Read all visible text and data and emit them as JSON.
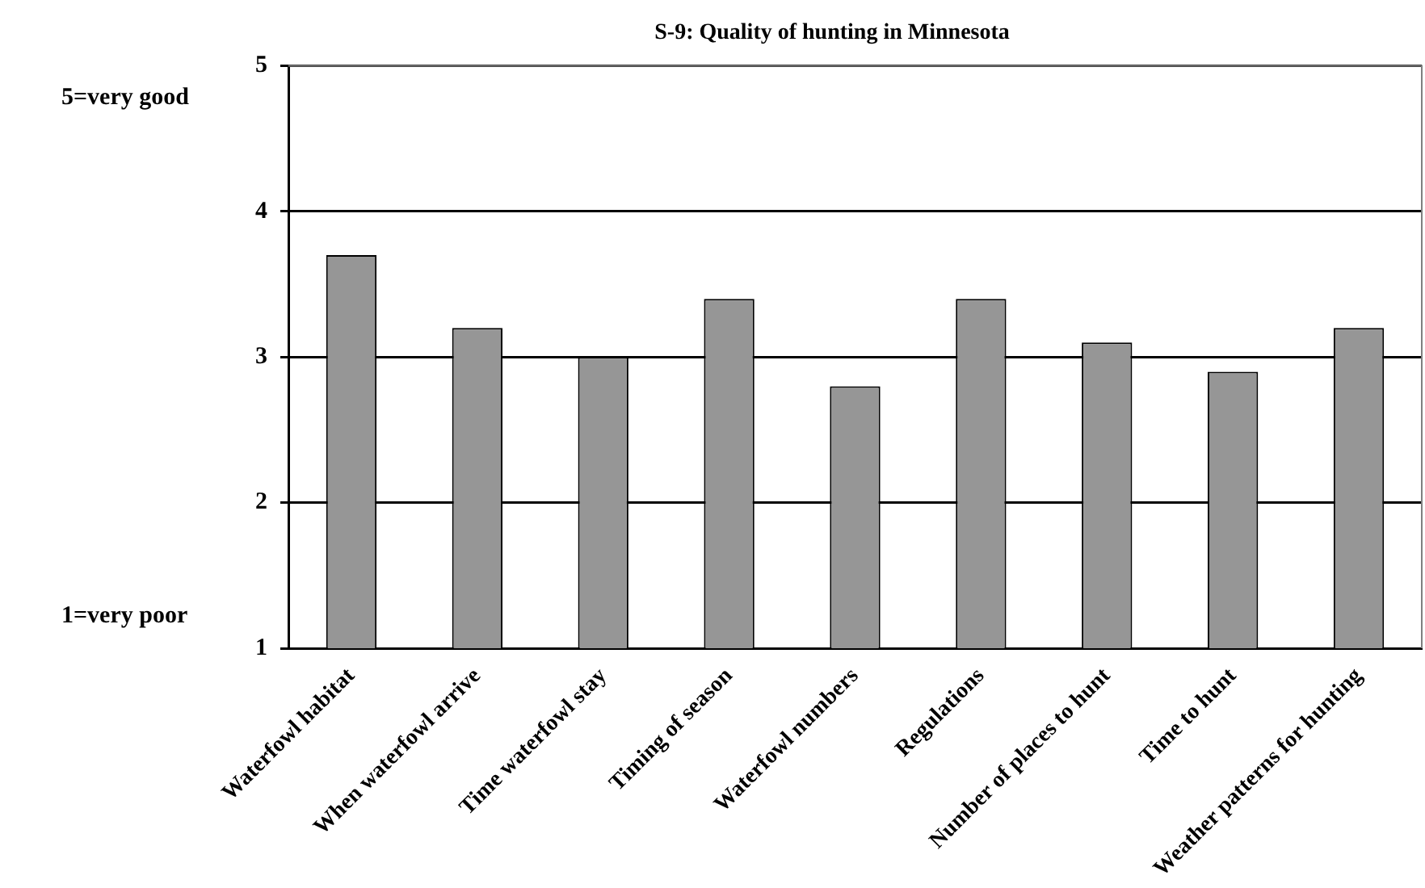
{
  "chart_data": {
    "type": "bar",
    "title": "S-9: Quality of hunting in Minnesota",
    "categories": [
      "Waterfowl habitat",
      "When waterfowl arrive",
      "Time waterfowl stay",
      "Timing of season",
      "Waterfowl numbers",
      "Regulations",
      "Number of places to hunt",
      "Time to hunt",
      "Weather patterns for hunting"
    ],
    "values": [
      3.7,
      3.2,
      3.0,
      3.4,
      2.8,
      3.4,
      3.1,
      2.9,
      3.2
    ],
    "color": "#969696",
    "ylim": [
      1,
      5
    ],
    "yticks": [
      1,
      2,
      3,
      4,
      5
    ],
    "grid": "y",
    "annotations": [
      "5=very good",
      "1=very poor"
    ]
  }
}
